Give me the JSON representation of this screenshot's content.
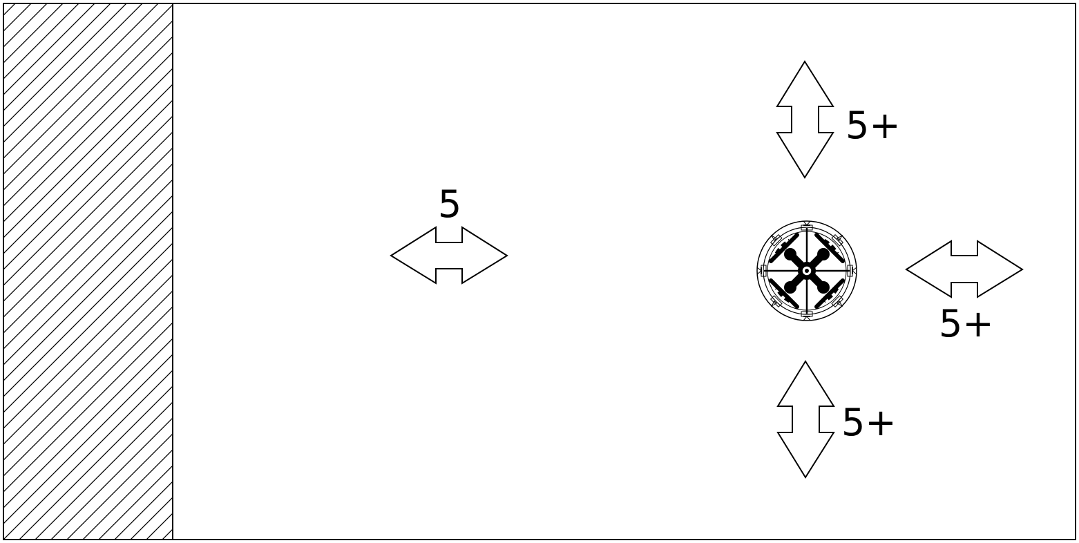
{
  "diagram": {
    "labels": {
      "wall_distance": "5",
      "top_clearance": "5+",
      "right_clearance": "5+",
      "bottom_clearance": "5+"
    },
    "icons": {
      "aircraft": "quadcopter-drone-icon",
      "arrow_horizontal": "double-headed-horizontal-arrow",
      "arrow_vertical": "double-headed-vertical-arrow"
    },
    "colors": {
      "stroke": "#000000",
      "background": "#ffffff"
    }
  }
}
